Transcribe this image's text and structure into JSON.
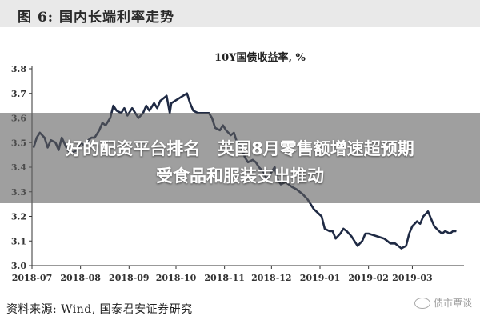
{
  "header": {
    "title": "图 6:  国内长端利率走势"
  },
  "overlay": {
    "line1": "好的配资平台排名   英国8月零售额增速超预期",
    "line2": "受食品和服装支出推动"
  },
  "footer": {
    "source": "资料来源: Wind, 国泰君安证券研究",
    "watermark": "债市覃谈"
  },
  "colors": {
    "line": "#1f2a44",
    "axis": "#333333",
    "header_bg": "#e9e9e9"
  },
  "icons": [
    "wechat-logo-icon"
  ],
  "chart_data": {
    "type": "line",
    "title": "10Y国债收益率, %",
    "xlabel": "",
    "ylabel": "",
    "ylim": [
      3.0,
      3.8
    ],
    "yticks": [
      "3.0",
      "3.1",
      "3.2",
      "3.3",
      "3.4",
      "3.5",
      "3.6",
      "3.7",
      "3.8"
    ],
    "xticks": [
      "2018-07",
      "2018-08",
      "2018-09",
      "2018-10",
      "2018-11",
      "2018-12",
      "2019-01",
      "2019-02",
      "2019-03"
    ],
    "grid": false,
    "legend": "none",
    "series": [
      {
        "values": [
          [
            "2018-07-02",
            3.48
          ],
          [
            "2018-07-04",
            3.52
          ],
          [
            "2018-07-06",
            3.54
          ],
          [
            "2018-07-09",
            3.52
          ],
          [
            "2018-07-11",
            3.48
          ],
          [
            "2018-07-13",
            3.51
          ],
          [
            "2018-07-16",
            3.5
          ],
          [
            "2018-07-18",
            3.47
          ],
          [
            "2018-07-20",
            3.52
          ],
          [
            "2018-07-23",
            3.48
          ],
          [
            "2018-07-25",
            3.46
          ],
          [
            "2018-07-27",
            3.46
          ],
          [
            "2018-07-30",
            3.47
          ],
          [
            "2018-08-01",
            3.5
          ],
          [
            "2018-08-03",
            3.49
          ],
          [
            "2018-08-06",
            3.51
          ],
          [
            "2018-08-08",
            3.52
          ],
          [
            "2018-08-10",
            3.52
          ],
          [
            "2018-08-13",
            3.55
          ],
          [
            "2018-08-15",
            3.58
          ],
          [
            "2018-08-17",
            3.57
          ],
          [
            "2018-08-20",
            3.6
          ],
          [
            "2018-08-22",
            3.65
          ],
          [
            "2018-08-24",
            3.63
          ],
          [
            "2018-08-27",
            3.62
          ],
          [
            "2018-08-29",
            3.64
          ],
          [
            "2018-08-31",
            3.61
          ],
          [
            "2018-09-03",
            3.64
          ],
          [
            "2018-09-05",
            3.62
          ],
          [
            "2018-09-07",
            3.6
          ],
          [
            "2018-09-10",
            3.62
          ],
          [
            "2018-09-12",
            3.65
          ],
          [
            "2018-09-14",
            3.63
          ],
          [
            "2018-09-17",
            3.66
          ],
          [
            "2018-09-19",
            3.64
          ],
          [
            "2018-09-21",
            3.67
          ],
          [
            "2018-09-25",
            3.69
          ],
          [
            "2018-09-27",
            3.62
          ],
          [
            "2018-09-28",
            3.66
          ],
          [
            "2018-10-08",
            3.7
          ],
          [
            "2018-10-10",
            3.66
          ],
          [
            "2018-10-12",
            3.63
          ],
          [
            "2018-10-15",
            3.62
          ],
          [
            "2018-10-17",
            3.62
          ],
          [
            "2018-10-19",
            3.62
          ],
          [
            "2018-10-22",
            3.62
          ],
          [
            "2018-10-24",
            3.6
          ],
          [
            "2018-10-26",
            3.56
          ],
          [
            "2018-10-29",
            3.55
          ],
          [
            "2018-10-31",
            3.57
          ],
          [
            "2018-11-02",
            3.55
          ],
          [
            "2018-11-05",
            3.53
          ],
          [
            "2018-11-07",
            3.54
          ],
          [
            "2018-11-09",
            3.5
          ],
          [
            "2018-11-12",
            3.48
          ],
          [
            "2018-11-14",
            3.44
          ],
          [
            "2018-11-16",
            3.42
          ],
          [
            "2018-11-19",
            3.43
          ],
          [
            "2018-11-21",
            3.42
          ],
          [
            "2018-11-23",
            3.4
          ],
          [
            "2018-11-26",
            3.38
          ],
          [
            "2018-11-28",
            3.35
          ],
          [
            "2018-11-30",
            3.37
          ],
          [
            "2018-12-03",
            3.4
          ],
          [
            "2018-12-05",
            3.35
          ],
          [
            "2018-12-07",
            3.33
          ],
          [
            "2018-12-10",
            3.34
          ],
          [
            "2018-12-12",
            3.33
          ],
          [
            "2018-12-14",
            3.32
          ],
          [
            "2018-12-17",
            3.31
          ],
          [
            "2018-12-19",
            3.3
          ],
          [
            "2018-12-21",
            3.29
          ],
          [
            "2018-12-24",
            3.27
          ],
          [
            "2018-12-26",
            3.25
          ],
          [
            "2018-12-28",
            3.23
          ],
          [
            "2019-01-02",
            3.2
          ],
          [
            "2019-01-04",
            3.15
          ],
          [
            "2019-01-07",
            3.14
          ],
          [
            "2019-01-09",
            3.14
          ],
          [
            "2019-01-11",
            3.11
          ],
          [
            "2019-01-14",
            3.13
          ],
          [
            "2019-01-16",
            3.15
          ],
          [
            "2019-01-18",
            3.14
          ],
          [
            "2019-01-21",
            3.12
          ],
          [
            "2019-01-23",
            3.1
          ],
          [
            "2019-01-25",
            3.08
          ],
          [
            "2019-01-28",
            3.1
          ],
          [
            "2019-01-30",
            3.13
          ],
          [
            "2019-02-01",
            3.13
          ],
          [
            "2019-02-11",
            3.11
          ],
          [
            "2019-02-13",
            3.1
          ],
          [
            "2019-02-15",
            3.09
          ],
          [
            "2019-02-18",
            3.09
          ],
          [
            "2019-02-20",
            3.08
          ],
          [
            "2019-02-22",
            3.07
          ],
          [
            "2019-02-25",
            3.08
          ],
          [
            "2019-02-27",
            3.13
          ],
          [
            "2019-03-01",
            3.16
          ],
          [
            "2019-03-04",
            3.18
          ],
          [
            "2019-03-06",
            3.17
          ],
          [
            "2019-03-08",
            3.2
          ],
          [
            "2019-03-11",
            3.22
          ],
          [
            "2019-03-13",
            3.19
          ],
          [
            "2019-03-15",
            3.16
          ],
          [
            "2019-03-18",
            3.14
          ],
          [
            "2019-03-20",
            3.13
          ],
          [
            "2019-03-22",
            3.14
          ],
          [
            "2019-03-25",
            3.13
          ],
          [
            "2019-03-27",
            3.14
          ],
          [
            "2019-03-29",
            3.14
          ]
        ]
      }
    ]
  }
}
